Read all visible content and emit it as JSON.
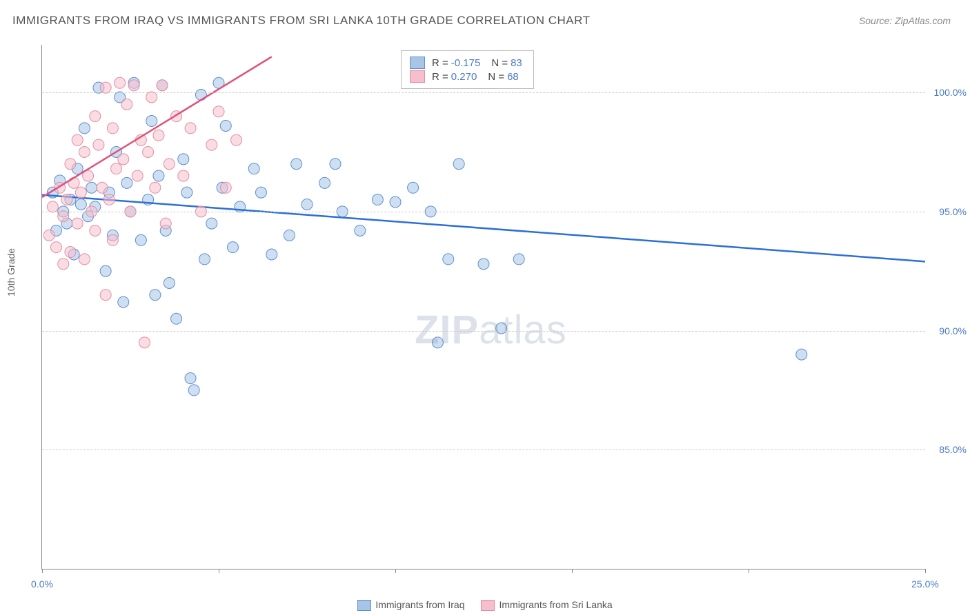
{
  "title": "IMMIGRANTS FROM IRAQ VS IMMIGRANTS FROM SRI LANKA 10TH GRADE CORRELATION CHART",
  "source": "Source: ZipAtlas.com",
  "y_axis_label": "10th Grade",
  "watermark_bold": "ZIP",
  "watermark_light": "atlas",
  "chart": {
    "type": "scatter",
    "xlim": [
      0,
      25
    ],
    "ylim": [
      80,
      102
    ],
    "x_ticks": [
      0,
      5,
      10,
      15,
      20,
      25
    ],
    "x_tick_labels": [
      "0.0%",
      "",
      "",
      "",
      "",
      "25.0%"
    ],
    "y_ticks": [
      85,
      90,
      95,
      100
    ],
    "y_tick_labels": [
      "85.0%",
      "90.0%",
      "95.0%",
      "100.0%"
    ],
    "grid_color": "#cccccc",
    "background_color": "#ffffff",
    "marker_radius": 8,
    "marker_opacity": 0.55,
    "series": [
      {
        "name": "Immigrants from Iraq",
        "fill_color": "#a8c5e8",
        "stroke_color": "#5b8fd1",
        "trend_color": "#2c6fd6",
        "trend_width": 2.5,
        "trend": {
          "x1": 0,
          "y1": 95.7,
          "x2": 25,
          "y2": 92.9
        },
        "R": "-0.175",
        "N": "83",
        "points": [
          [
            0.3,
            95.8
          ],
          [
            0.4,
            94.2
          ],
          [
            0.5,
            96.3
          ],
          [
            0.6,
            95.0
          ],
          [
            0.7,
            94.5
          ],
          [
            0.8,
            95.5
          ],
          [
            0.9,
            93.2
          ],
          [
            1.0,
            96.8
          ],
          [
            1.1,
            95.3
          ],
          [
            1.2,
            98.5
          ],
          [
            1.3,
            94.8
          ],
          [
            1.4,
            96.0
          ],
          [
            1.5,
            95.2
          ],
          [
            1.6,
            100.2
          ],
          [
            1.8,
            92.5
          ],
          [
            1.9,
            95.8
          ],
          [
            2.0,
            94.0
          ],
          [
            2.1,
            97.5
          ],
          [
            2.2,
            99.8
          ],
          [
            2.3,
            91.2
          ],
          [
            2.4,
            96.2
          ],
          [
            2.5,
            95.0
          ],
          [
            2.6,
            100.4
          ],
          [
            2.8,
            93.8
          ],
          [
            3.0,
            95.5
          ],
          [
            3.1,
            98.8
          ],
          [
            3.2,
            91.5
          ],
          [
            3.3,
            96.5
          ],
          [
            3.4,
            100.3
          ],
          [
            3.5,
            94.2
          ],
          [
            3.6,
            92.0
          ],
          [
            3.8,
            90.5
          ],
          [
            4.0,
            97.2
          ],
          [
            4.1,
            95.8
          ],
          [
            4.2,
            88.0
          ],
          [
            4.3,
            87.5
          ],
          [
            4.5,
            99.9
          ],
          [
            4.6,
            93.0
          ],
          [
            4.8,
            94.5
          ],
          [
            5.0,
            100.4
          ],
          [
            5.1,
            96.0
          ],
          [
            5.2,
            98.6
          ],
          [
            5.4,
            93.5
          ],
          [
            5.6,
            95.2
          ],
          [
            6.0,
            96.8
          ],
          [
            6.2,
            95.8
          ],
          [
            6.5,
            93.2
          ],
          [
            7.0,
            94.0
          ],
          [
            7.2,
            97.0
          ],
          [
            7.5,
            95.3
          ],
          [
            8.0,
            96.2
          ],
          [
            8.3,
            97.0
          ],
          [
            8.5,
            95.0
          ],
          [
            9.0,
            94.2
          ],
          [
            9.5,
            95.5
          ],
          [
            10.0,
            95.4
          ],
          [
            10.5,
            96.0
          ],
          [
            11.0,
            95.0
          ],
          [
            11.2,
            89.5
          ],
          [
            11.5,
            93.0
          ],
          [
            11.8,
            97.0
          ],
          [
            12.5,
            92.8
          ],
          [
            13.0,
            90.1
          ],
          [
            13.5,
            93.0
          ],
          [
            21.5,
            89.0
          ]
        ]
      },
      {
        "name": "Immigrants from Sri Lanka",
        "fill_color": "#f5c0cc",
        "stroke_color": "#e88ba3",
        "trend_color": "#e0507a",
        "trend_width": 2.5,
        "trend": {
          "x1": 0,
          "y1": 95.6,
          "x2": 6.5,
          "y2": 101.5
        },
        "R": "0.270",
        "N": "68",
        "points": [
          [
            0.2,
            94.0
          ],
          [
            0.3,
            95.2
          ],
          [
            0.4,
            93.5
          ],
          [
            0.5,
            96.0
          ],
          [
            0.6,
            94.8
          ],
          [
            0.6,
            92.8
          ],
          [
            0.7,
            95.5
          ],
          [
            0.8,
            97.0
          ],
          [
            0.8,
            93.3
          ],
          [
            0.9,
            96.2
          ],
          [
            1.0,
            94.5
          ],
          [
            1.0,
            98.0
          ],
          [
            1.1,
            95.8
          ],
          [
            1.2,
            97.5
          ],
          [
            1.2,
            93.0
          ],
          [
            1.3,
            96.5
          ],
          [
            1.4,
            95.0
          ],
          [
            1.5,
            99.0
          ],
          [
            1.5,
            94.2
          ],
          [
            1.6,
            97.8
          ],
          [
            1.7,
            96.0
          ],
          [
            1.8,
            100.2
          ],
          [
            1.8,
            91.5
          ],
          [
            1.9,
            95.5
          ],
          [
            2.0,
            98.5
          ],
          [
            2.0,
            93.8
          ],
          [
            2.1,
            96.8
          ],
          [
            2.2,
            100.4
          ],
          [
            2.3,
            97.2
          ],
          [
            2.4,
            99.5
          ],
          [
            2.5,
            95.0
          ],
          [
            2.6,
            100.3
          ],
          [
            2.7,
            96.5
          ],
          [
            2.8,
            98.0
          ],
          [
            2.9,
            89.5
          ],
          [
            3.0,
            97.5
          ],
          [
            3.1,
            99.8
          ],
          [
            3.2,
            96.0
          ],
          [
            3.3,
            98.2
          ],
          [
            3.4,
            100.3
          ],
          [
            3.5,
            94.5
          ],
          [
            3.6,
            97.0
          ],
          [
            3.8,
            99.0
          ],
          [
            4.0,
            96.5
          ],
          [
            4.2,
            98.5
          ],
          [
            4.5,
            95.0
          ],
          [
            4.8,
            97.8
          ],
          [
            5.0,
            99.2
          ],
          [
            5.2,
            96.0
          ],
          [
            5.5,
            98.0
          ]
        ]
      }
    ]
  },
  "bottom_legend": [
    {
      "label": "Immigrants from Iraq",
      "fill": "#a8c5e8",
      "stroke": "#5b8fd1"
    },
    {
      "label": "Immigrants from Sri Lanka",
      "fill": "#f5c0cc",
      "stroke": "#e88ba3"
    }
  ]
}
